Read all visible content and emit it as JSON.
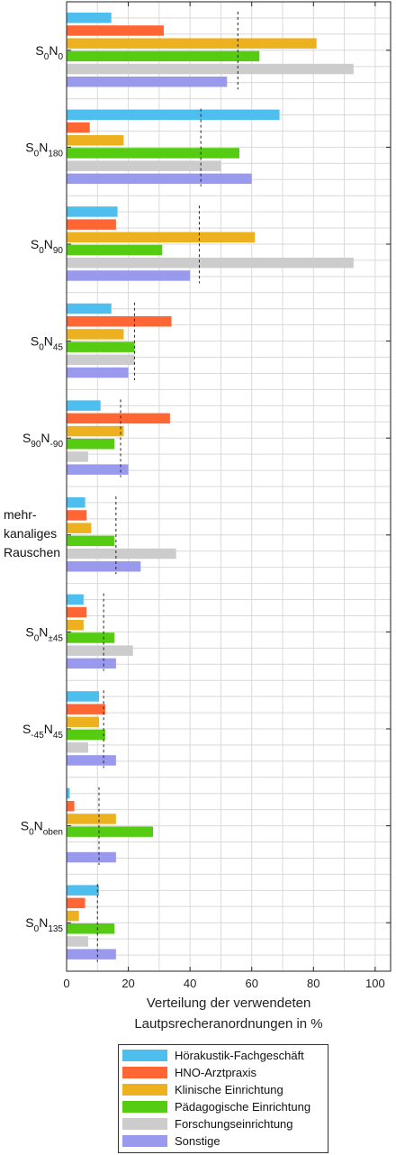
{
  "chart_data": {
    "type": "bar",
    "orientation": "horizontal",
    "xlabel_lines": [
      "Verteilung der verwendeten",
      "Lautpsrecheranordnungen in %"
    ],
    "xlim": [
      0,
      105
    ],
    "xticks": [
      0,
      20,
      40,
      60,
      80,
      100
    ],
    "grid": true,
    "legend_placement": "bottom",
    "categories": [
      {
        "main": "S",
        "parts": [
          {
            "t": "0",
            "sub": true
          },
          {
            "t": "N",
            "sub": false
          },
          {
            "t": "0",
            "sub": true
          }
        ]
      },
      {
        "main": "S",
        "parts": [
          {
            "t": "0",
            "sub": true
          },
          {
            "t": "N",
            "sub": false
          },
          {
            "t": "180",
            "sub": true
          }
        ]
      },
      {
        "main": "S",
        "parts": [
          {
            "t": "0",
            "sub": true
          },
          {
            "t": "N",
            "sub": false
          },
          {
            "t": "90",
            "sub": true
          }
        ]
      },
      {
        "main": "S",
        "parts": [
          {
            "t": "0",
            "sub": true
          },
          {
            "t": "N",
            "sub": false
          },
          {
            "t": "45",
            "sub": true
          }
        ]
      },
      {
        "main": "S",
        "parts": [
          {
            "t": "90",
            "sub": true
          },
          {
            "t": "N",
            "sub": false
          },
          {
            "t": "-90",
            "sub": true
          }
        ]
      },
      {
        "lines": [
          "mehr-",
          "kanaliges",
          "Rauschen"
        ]
      },
      {
        "main": "S",
        "parts": [
          {
            "t": "0",
            "sub": true
          },
          {
            "t": "N",
            "sub": false
          },
          {
            "t": "±45",
            "sub": true
          }
        ]
      },
      {
        "main": "S",
        "parts": [
          {
            "t": "-45",
            "sub": true
          },
          {
            "t": "N",
            "sub": false
          },
          {
            "t": "45",
            "sub": true
          }
        ]
      },
      {
        "main": "S",
        "parts": [
          {
            "t": "0",
            "sub": true
          },
          {
            "t": "N",
            "sub": false
          },
          {
            "t": "oben",
            "sub": true
          }
        ]
      },
      {
        "main": "S",
        "parts": [
          {
            "t": "0",
            "sub": true
          },
          {
            "t": "N",
            "sub": false
          },
          {
            "t": "135",
            "sub": true
          }
        ]
      }
    ],
    "series": [
      {
        "name": "Hörakustik-Fachgeschäft",
        "color": "#4dbeee",
        "values": [
          14.5,
          69,
          16.5,
          14.5,
          11,
          6,
          5.5,
          10.5,
          1,
          10.5
        ]
      },
      {
        "name": "HNO-Arztpraxis",
        "color": "#ff6633",
        "values": [
          31.5,
          7.5,
          16,
          34,
          33.5,
          6.5,
          6.5,
          12.5,
          2.5,
          6
        ]
      },
      {
        "name": "Klinische Einrichtung",
        "color": "#edb120",
        "values": [
          81,
          18.5,
          61,
          18.5,
          18.5,
          8,
          5.5,
          10.5,
          16,
          4
        ]
      },
      {
        "name": "Pädagogische Einrichtung",
        "color": "#55cc11",
        "values": [
          62.5,
          56,
          31,
          22,
          15.5,
          15.5,
          15.5,
          12.5,
          28,
          15.5
        ]
      },
      {
        "name": "Forschungseinrichtung",
        "color": "#cccccc",
        "values": [
          93,
          50,
          93,
          22,
          7,
          35.5,
          21.5,
          7,
          0,
          7
        ]
      },
      {
        "name": "Sonstige",
        "color": "#9999ee",
        "values": [
          52,
          60,
          40,
          20,
          20,
          24,
          16,
          16,
          16,
          16
        ]
      }
    ],
    "mean_values": [
      55.5,
      43.5,
      43,
      22,
      17.5,
      16,
      12,
      12,
      10.5,
      10
    ]
  }
}
